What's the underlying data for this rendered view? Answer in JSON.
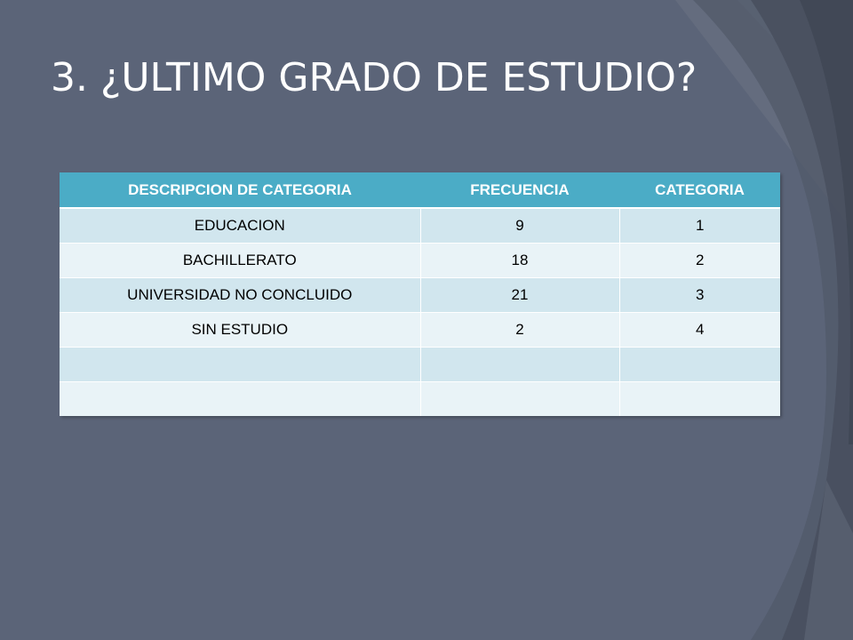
{
  "slide": {
    "title": "3. ¿ULTIMO GRADO DE ESTUDIO?"
  },
  "table": {
    "headers": [
      "DESCRIPCION DE CATEGORIA",
      "FRECUENCIA",
      "CATEGORIA"
    ],
    "rows": [
      [
        "EDUCACION",
        "9",
        "1"
      ],
      [
        "BACHILLERATO",
        "18",
        "2"
      ],
      [
        "UNIVERSIDAD NO CONCLUIDO",
        "21",
        "3"
      ],
      [
        "SIN ESTUDIO",
        "2",
        "4"
      ],
      [
        "",
        "",
        ""
      ],
      [
        "",
        "",
        ""
      ]
    ]
  },
  "colors": {
    "background": "#5b6478",
    "header_fill": "#4bacc6",
    "row_band_dark": "#d1e6ee",
    "row_band_light": "#e9f3f7",
    "title_text": "#ffffff"
  }
}
